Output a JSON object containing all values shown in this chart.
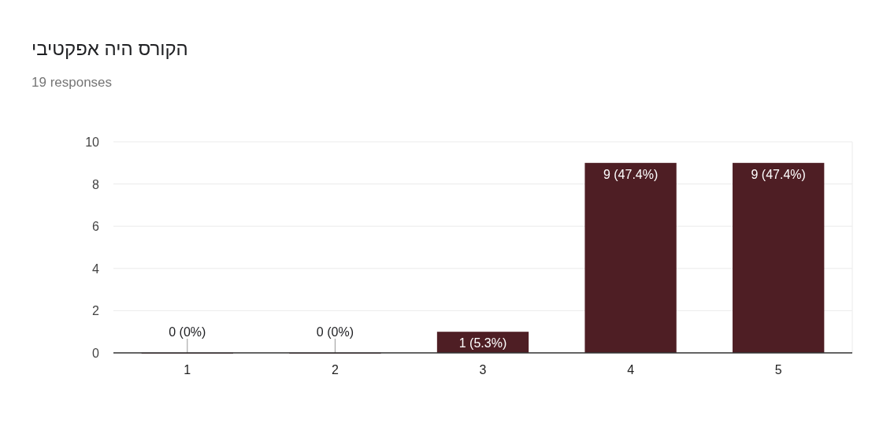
{
  "chart_data": {
    "type": "bar",
    "title": "הקורס היה אפקטיבי",
    "subtitle": "19 responses",
    "categories": [
      "1",
      "2",
      "3",
      "4",
      "5"
    ],
    "values": [
      0,
      0,
      1,
      9,
      9
    ],
    "value_labels": [
      "0 (0%)",
      "0 (0%)",
      "1 (5.3%)",
      "9 (47.4%)",
      "9 (47.4%)"
    ],
    "color": "#4e1e24",
    "ylim": [
      0,
      10
    ],
    "yticks": [
      0,
      2,
      4,
      6,
      8,
      10
    ],
    "grid": "y"
  }
}
